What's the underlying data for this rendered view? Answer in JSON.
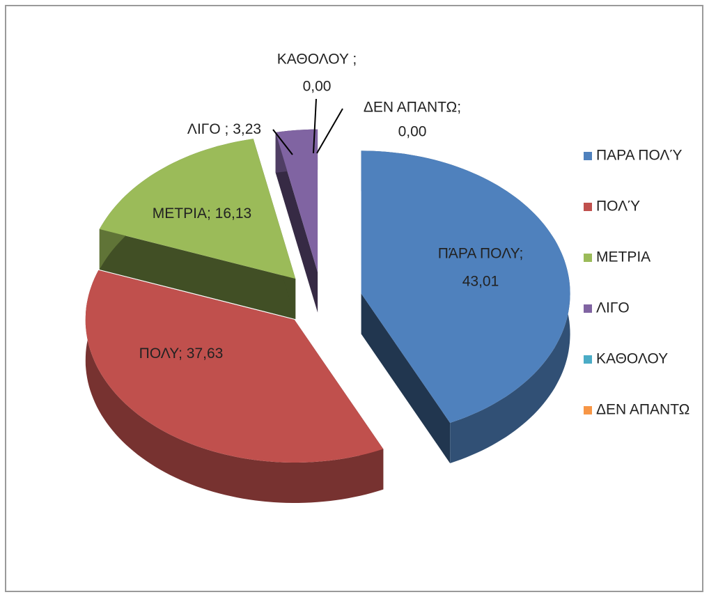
{
  "chart_data": {
    "type": "pie",
    "categories": [
      "ΠΑΡΑ ΠΟΛΎ",
      "ΠΟΛΎ",
      "ΜΕΤΡΙΑ",
      "ΛΙΓΟ",
      "ΚΑΘΟΛΟΥ",
      "ΔΕΝ ΑΠΑΝΤΩ"
    ],
    "label_names": [
      "ΠΆΡΑ ΠΟΛΥ;",
      "ΠΟΛΥ;",
      "ΜΕΤΡΙΑ;",
      "ΛΙΓΟ ;",
      "ΚΑΘΟΛΟΥ ;",
      "ΔΕΝ ΑΠΑΝΤΩ;"
    ],
    "values": [
      43.01,
      37.63,
      16.13,
      3.23,
      0,
      0
    ],
    "value_labels": [
      "43,01",
      "37,63",
      "16,13",
      "3,23",
      "0,00",
      "0,00"
    ],
    "colors": [
      "#4f81bd",
      "#c0504d",
      "#9bbb59",
      "#8064a2",
      "#4bacc6",
      "#f79646"
    ],
    "legend": "right"
  }
}
